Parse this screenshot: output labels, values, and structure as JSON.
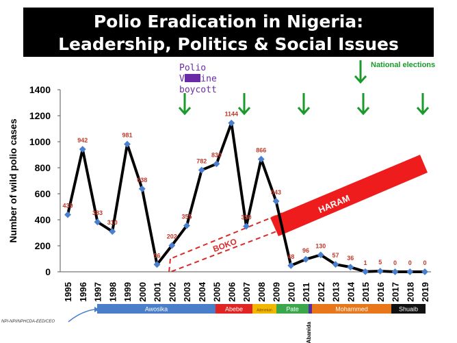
{
  "title": {
    "line1": "Polio Eradication in Nigeria:",
    "line2": "Leadership, Politics & Social Issues"
  },
  "chart_data": {
    "type": "line",
    "title": "Polio Eradication in Nigeria: Leadership, Politics & Social Issues",
    "xlabel": "",
    "ylabel": "Number of wild polio cases",
    "ylim": [
      0,
      1400
    ],
    "yticks": [
      0,
      200,
      400,
      600,
      800,
      1000,
      1200,
      1400
    ],
    "grid": false,
    "x": [
      "1995",
      "1996",
      "1997",
      "1998",
      "1999",
      "2000",
      "2001",
      "2002",
      "2003",
      "2004",
      "2005",
      "2006",
      "2007",
      "2008",
      "2009",
      "2010",
      "2011",
      "2012",
      "2013",
      "2014",
      "2015",
      "2016",
      "2017",
      "2018",
      "2019"
    ],
    "series": [
      {
        "values": [
          439,
          942,
          383,
          310,
          981,
          638,
          56,
          202,
          355,
          782,
          830,
          1144,
          350,
          866,
          543,
          48,
          96,
          130,
          57,
          36,
          1,
          5,
          0,
          0,
          0
        ],
        "labels": [
          "439",
          "942",
          "383",
          "310",
          "981",
          "638",
          "56",
          "202",
          "355",
          "782",
          "830",
          "1144",
          "350",
          "866",
          "543",
          "48",
          "96",
          "130",
          "57",
          "36",
          "1",
          "5",
          "0",
          "0",
          "0"
        ]
      }
    ],
    "line_color": "#000000",
    "marker_color": "#4a7fd0",
    "label_color": "#c0392b",
    "election_years": [
      "1999",
      "2003",
      "2007",
      "2011",
      "2015",
      "2019"
    ],
    "election_arrow_color": "#1a9a2a"
  },
  "annotations": {
    "national_elections": "National elections",
    "vaccine_boycott": "Polio Vaccine boycott",
    "boko": "BOKO",
    "haram": "HARAM",
    "source": "NPI-NPI/NPHCDA-EED/CEO"
  },
  "leaders": [
    {
      "name": "Awosika",
      "from": "1996",
      "to": "2004",
      "color": "#4a7ec8",
      "text_color": "#ffffff"
    },
    {
      "name": "Abebe",
      "from": "2005",
      "to": "2007",
      "color": "#e02424",
      "text_color": "#ffffff"
    },
    {
      "name": "Adenekan",
      "from": "2008",
      "to": "2008",
      "color": "#f0b800",
      "text_color": "#7a3a00"
    },
    {
      "name": "Pate",
      "from": "2009",
      "to": "2010",
      "color": "#3aa84a",
      "text_color": "#ffffff"
    },
    {
      "name": "Abanida",
      "from": "2011",
      "to": "2011",
      "color": "#5a2aa0",
      "text_color": "#000000"
    },
    {
      "name": "Mohammed",
      "from": "2011",
      "to": "2017",
      "color": "#e8761a",
      "text_color": "#ffffff"
    },
    {
      "name": "Shuaib",
      "from": "2017",
      "to": "2019",
      "color": "#111111",
      "text_color": "#ffffff"
    }
  ]
}
